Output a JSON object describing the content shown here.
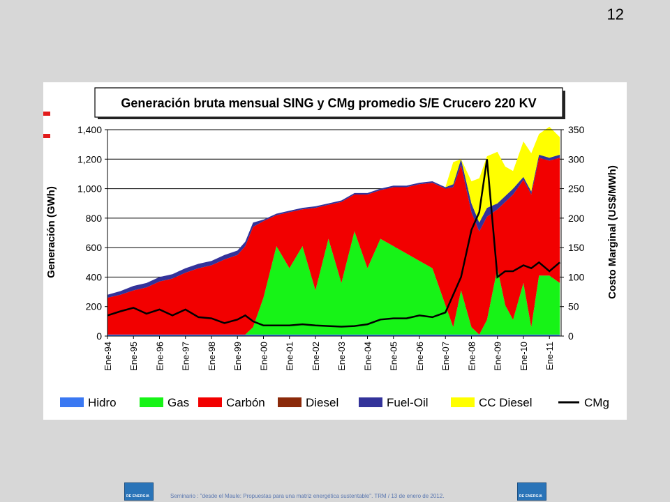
{
  "slide_number": "12",
  "footer": {
    "text": "Seminario : \"desde el Maule: Propuestas para una matriz energética sustentable\". TRM / 13 de enero de 2012.",
    "logo_text": "DE ENERGIA"
  },
  "chart_data": {
    "type": "area",
    "title": "Generación bruta mensual SING y CMg promedio S/E Crucero 220 KV",
    "ylabel": "Generación (GWh)",
    "y2label": "Costo Marginal (US$/MWh)",
    "ylim": [
      0,
      1400
    ],
    "y2lim": [
      0,
      350
    ],
    "yticks": [
      "0",
      "200",
      "400",
      "600",
      "800",
      "1,000",
      "1,200",
      "1,400"
    ],
    "y2ticks": [
      "0",
      "50",
      "100",
      "150",
      "200",
      "250",
      "300",
      "350"
    ],
    "categories": [
      "Ene-94",
      "Ene-95",
      "Ene-96",
      "Ene-97",
      "Ene-98",
      "Ene-99",
      "Ene-00",
      "Ene-01",
      "Ene-02",
      "Ene-03",
      "Ene-04",
      "Ene-05",
      "Ene-06",
      "Ene-07",
      "Ene-08",
      "Ene-09",
      "Ene-10",
      "Ene-11"
    ],
    "x": [
      1994.0,
      1994.5,
      1995.0,
      1995.5,
      1996.0,
      1996.5,
      1997.0,
      1997.5,
      1998.0,
      1998.5,
      1999.0,
      1999.3,
      1999.6,
      2000.0,
      2000.5,
      2001.0,
      2001.5,
      2002.0,
      2002.5,
      2003.0,
      2003.5,
      2004.0,
      2004.5,
      2005.0,
      2005.5,
      2006.0,
      2006.5,
      2007.0,
      2007.3,
      2007.6,
      2008.0,
      2008.3,
      2008.6,
      2009.0,
      2009.3,
      2009.6,
      2010.0,
      2010.3,
      2010.6,
      2011.0,
      2011.4
    ],
    "legend_position": "bottom",
    "grid": true,
    "series": [
      {
        "name": "Hidro",
        "color": "#3a78f2",
        "axis": "left",
        "values": [
          10,
          10,
          10,
          10,
          10,
          10,
          10,
          10,
          10,
          10,
          10,
          10,
          10,
          10,
          10,
          10,
          10,
          10,
          10,
          10,
          10,
          10,
          10,
          10,
          10,
          10,
          10,
          10,
          10,
          10,
          10,
          10,
          10,
          10,
          10,
          10,
          10,
          10,
          10,
          10,
          10
        ]
      },
      {
        "name": "Gas",
        "color": "#17f317",
        "axis": "left",
        "values": [
          0,
          0,
          0,
          0,
          0,
          0,
          0,
          0,
          0,
          0,
          0,
          0,
          50,
          250,
          600,
          450,
          600,
          300,
          650,
          350,
          700,
          450,
          650,
          600,
          550,
          500,
          450,
          200,
          50,
          300,
          50,
          0,
          100,
          450,
          200,
          100,
          350,
          50,
          400,
          400,
          350
        ]
      },
      {
        "name": "Carbón",
        "color": "#f20000",
        "axis": "left",
        "values": [
          250,
          270,
          300,
          320,
          360,
          380,
          420,
          450,
          470,
          510,
          540,
          600,
          680,
          520,
          210,
          380,
          250,
          560,
          230,
          550,
          250,
          500,
          330,
          400,
          450,
          520,
          580,
          790,
          950,
          850,
          780,
          700,
          700,
          400,
          700,
          850,
          700,
          900,
          800,
          780,
          850
        ]
      },
      {
        "name": "Diesel",
        "color": "#8b2a0a",
        "axis": "left",
        "values": [
          0,
          0,
          0,
          0,
          0,
          0,
          0,
          0,
          0,
          0,
          0,
          0,
          0,
          0,
          0,
          0,
          0,
          0,
          0,
          0,
          0,
          0,
          0,
          0,
          0,
          0,
          0,
          0,
          0,
          0,
          0,
          0,
          0,
          0,
          0,
          0,
          0,
          0,
          0,
          0,
          0
        ]
      },
      {
        "name": "Fuel-Oil",
        "color": "#33339a",
        "axis": "left",
        "values": [
          20,
          25,
          30,
          30,
          30,
          30,
          30,
          30,
          30,
          30,
          30,
          30,
          30,
          10,
          10,
          10,
          10,
          10,
          10,
          10,
          10,
          10,
          10,
          10,
          10,
          10,
          10,
          10,
          20,
          40,
          60,
          60,
          60,
          40,
          40,
          40,
          20,
          20,
          20,
          20,
          20
        ]
      },
      {
        "name": "CC Diesel",
        "color": "#ffff00",
        "axis": "left",
        "values": [
          0,
          0,
          0,
          0,
          0,
          0,
          0,
          0,
          0,
          0,
          0,
          0,
          0,
          0,
          0,
          0,
          0,
          0,
          0,
          0,
          0,
          0,
          0,
          0,
          0,
          0,
          0,
          0,
          150,
          0,
          150,
          300,
          350,
          350,
          200,
          120,
          240,
          260,
          140,
          210,
          120
        ]
      },
      {
        "name": "CMg",
        "color": "#000000",
        "axis": "right",
        "type": "line",
        "values": [
          35,
          42,
          48,
          38,
          45,
          35,
          45,
          32,
          30,
          22,
          28,
          35,
          25,
          18,
          18,
          18,
          20,
          18,
          17,
          16,
          17,
          20,
          28,
          30,
          30,
          35,
          32,
          40,
          70,
          100,
          180,
          210,
          300,
          100,
          110,
          110,
          120,
          115,
          125,
          110,
          125
        ]
      }
    ]
  }
}
